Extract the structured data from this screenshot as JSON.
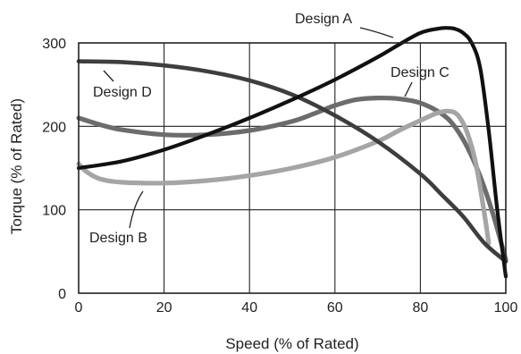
{
  "chart_data": {
    "type": "line",
    "title": "",
    "xlabel": "Speed (% of Rated)",
    "ylabel": "Torque (% of Rated)",
    "xlim": [
      0,
      100
    ],
    "ylim": [
      0,
      320
    ],
    "x_ticks": [
      0,
      20,
      40,
      60,
      80,
      100
    ],
    "y_ticks": [
      0,
      100,
      200,
      300
    ],
    "grid": true,
    "legend": "inline labels",
    "series": [
      {
        "name": "Design A",
        "color": "#111111",
        "x": [
          0,
          10,
          20,
          30,
          40,
          50,
          60,
          70,
          75,
          80,
          84,
          86,
          88,
          90,
          92,
          94,
          96,
          98,
          100
        ],
        "y": [
          150,
          158,
          172,
          190,
          210,
          232,
          256,
          283,
          298,
          312,
          317,
          318,
          317,
          312,
          300,
          270,
          195,
          100,
          20
        ]
      },
      {
        "name": "Design B",
        "color": "#a5a5a5",
        "x": [
          0,
          2,
          5,
          10,
          20,
          30,
          40,
          50,
          60,
          70,
          75,
          80,
          84,
          87,
          89,
          91,
          93,
          95,
          96
        ],
        "y": [
          155,
          145,
          137,
          133,
          132,
          135,
          141,
          150,
          163,
          182,
          195,
          207,
          216,
          218,
          212,
          192,
          155,
          95,
          60
        ]
      },
      {
        "name": "Design C",
        "color": "#6c6c6c",
        "x": [
          0,
          5,
          10,
          20,
          30,
          40,
          50,
          55,
          60,
          65,
          70,
          75,
          80,
          85,
          88,
          91,
          94,
          97,
          100
        ],
        "y": [
          210,
          202,
          196,
          190,
          190,
          195,
          206,
          215,
          225,
          232,
          234,
          233,
          228,
          215,
          200,
          175,
          140,
          95,
          40
        ]
      },
      {
        "name": "Design D",
        "color": "#3e3e3e",
        "x": [
          0,
          10,
          20,
          30,
          40,
          50,
          60,
          70,
          80,
          85,
          90,
          95,
          100
        ],
        "y": [
          278,
          277,
          273,
          266,
          255,
          238,
          213,
          182,
          143,
          118,
          92,
          60,
          38
        ]
      }
    ]
  }
}
